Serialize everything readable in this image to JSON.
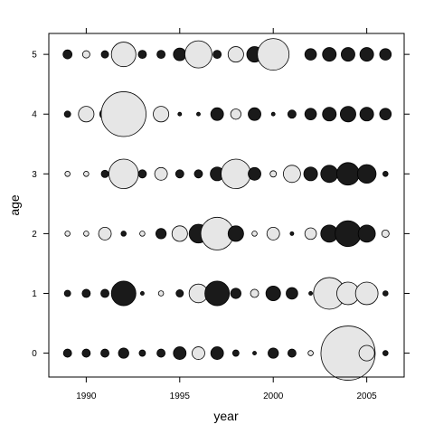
{
  "chart_data": {
    "type": "scatter",
    "subtype": "bubble",
    "title": "",
    "xlabel": "year",
    "ylabel": "age",
    "xlim": [
      1988,
      2007
    ],
    "ylim": [
      -0.4,
      5.35
    ],
    "xticks": [
      1990,
      1995,
      2000,
      2005
    ],
    "yticks": [
      0,
      1,
      2,
      3,
      4,
      5
    ],
    "ticks_on_top_and_right": true,
    "grid": false,
    "legend": "none",
    "colors": {
      "positive": "#1a1a1a",
      "negative": "#e6e6e6",
      "stroke": "#000000"
    },
    "encoding_note": "bubble area proportional to magnitude; dark = positive, light = negative",
    "points": [
      {
        "year": 1989,
        "age": 5,
        "size": 0.06,
        "sign": "positive"
      },
      {
        "year": 1990,
        "age": 5,
        "size": 0.04,
        "sign": "negative"
      },
      {
        "year": 1991,
        "age": 5,
        "size": 0.04,
        "sign": "positive"
      },
      {
        "year": 1992,
        "age": 5,
        "size": 0.45,
        "sign": "negative"
      },
      {
        "year": 1993,
        "age": 5,
        "size": 0.05,
        "sign": "positive"
      },
      {
        "year": 1994,
        "age": 5,
        "size": 0.05,
        "sign": "positive"
      },
      {
        "year": 1995,
        "age": 5,
        "size": 0.12,
        "sign": "positive"
      },
      {
        "year": 1996,
        "age": 5,
        "size": 0.55,
        "sign": "negative"
      },
      {
        "year": 1997,
        "age": 5,
        "size": 0.05,
        "sign": "positive"
      },
      {
        "year": 1998,
        "age": 5,
        "size": 0.18,
        "sign": "negative"
      },
      {
        "year": 1999,
        "age": 5,
        "size": 0.18,
        "sign": "positive"
      },
      {
        "year": 2000,
        "age": 5,
        "size": 0.75,
        "sign": "negative"
      },
      {
        "year": 2002,
        "age": 5,
        "size": 0.1,
        "sign": "positive"
      },
      {
        "year": 2003,
        "age": 5,
        "size": 0.14,
        "sign": "positive"
      },
      {
        "year": 2004,
        "age": 5,
        "size": 0.14,
        "sign": "positive"
      },
      {
        "year": 2005,
        "age": 5,
        "size": 0.14,
        "sign": "positive"
      },
      {
        "year": 2006,
        "age": 5,
        "size": 0.1,
        "sign": "positive"
      },
      {
        "year": 1989,
        "age": 4,
        "size": 0.03,
        "sign": "positive"
      },
      {
        "year": 1990,
        "age": 4,
        "size": 0.18,
        "sign": "negative"
      },
      {
        "year": 1991,
        "age": 4,
        "size": 0.08,
        "sign": "positive"
      },
      {
        "year": 1992,
        "age": 4,
        "size": 1.5,
        "sign": "negative"
      },
      {
        "year": 1994,
        "age": 4,
        "size": 0.18,
        "sign": "negative"
      },
      {
        "year": 1995,
        "age": 4,
        "size": 0.01,
        "sign": "positive"
      },
      {
        "year": 1996,
        "age": 4,
        "size": 0.01,
        "sign": "positive"
      },
      {
        "year": 1997,
        "age": 4,
        "size": 0.12,
        "sign": "positive"
      },
      {
        "year": 1998,
        "age": 4,
        "size": 0.08,
        "sign": "negative"
      },
      {
        "year": 1999,
        "age": 4,
        "size": 0.12,
        "sign": "positive"
      },
      {
        "year": 2000,
        "age": 4,
        "size": 0.01,
        "sign": "positive"
      },
      {
        "year": 2001,
        "age": 4,
        "size": 0.05,
        "sign": "positive"
      },
      {
        "year": 2002,
        "age": 4,
        "size": 0.1,
        "sign": "positive"
      },
      {
        "year": 2003,
        "age": 4,
        "size": 0.14,
        "sign": "positive"
      },
      {
        "year": 2004,
        "age": 4,
        "size": 0.18,
        "sign": "positive"
      },
      {
        "year": 2005,
        "age": 4,
        "size": 0.14,
        "sign": "positive"
      },
      {
        "year": 2006,
        "age": 4,
        "size": 0.1,
        "sign": "positive"
      },
      {
        "year": 1989,
        "age": 3,
        "size": 0.02,
        "sign": "negative"
      },
      {
        "year": 1990,
        "age": 3,
        "size": 0.02,
        "sign": "negative"
      },
      {
        "year": 1991,
        "age": 3,
        "size": 0.04,
        "sign": "positive"
      },
      {
        "year": 1992,
        "age": 3,
        "size": 0.65,
        "sign": "negative"
      },
      {
        "year": 1993,
        "age": 3,
        "size": 0.05,
        "sign": "positive"
      },
      {
        "year": 1994,
        "age": 3,
        "size": 0.12,
        "sign": "negative"
      },
      {
        "year": 1995,
        "age": 3,
        "size": 0.05,
        "sign": "positive"
      },
      {
        "year": 1996,
        "age": 3,
        "size": 0.05,
        "sign": "positive"
      },
      {
        "year": 1997,
        "age": 3,
        "size": 0.14,
        "sign": "positive"
      },
      {
        "year": 1998,
        "age": 3,
        "size": 0.65,
        "sign": "negative"
      },
      {
        "year": 1999,
        "age": 3,
        "size": 0.12,
        "sign": "positive"
      },
      {
        "year": 2000,
        "age": 3,
        "size": 0.03,
        "sign": "negative"
      },
      {
        "year": 2001,
        "age": 3,
        "size": 0.22,
        "sign": "negative"
      },
      {
        "year": 2002,
        "age": 3,
        "size": 0.14,
        "sign": "positive"
      },
      {
        "year": 2003,
        "age": 3,
        "size": 0.22,
        "sign": "positive"
      },
      {
        "year": 2004,
        "age": 3,
        "size": 0.38,
        "sign": "positive"
      },
      {
        "year": 2005,
        "age": 3,
        "size": 0.26,
        "sign": "positive"
      },
      {
        "year": 2006,
        "age": 3,
        "size": 0.02,
        "sign": "positive"
      },
      {
        "year": 1989,
        "age": 2,
        "size": 0.02,
        "sign": "negative"
      },
      {
        "year": 1990,
        "age": 2,
        "size": 0.02,
        "sign": "negative"
      },
      {
        "year": 1991,
        "age": 2,
        "size": 0.12,
        "sign": "negative"
      },
      {
        "year": 1992,
        "age": 2,
        "size": 0.02,
        "sign": "positive"
      },
      {
        "year": 1993,
        "age": 2,
        "size": 0.02,
        "sign": "negative"
      },
      {
        "year": 1994,
        "age": 2,
        "size": 0.08,
        "sign": "positive"
      },
      {
        "year": 1995,
        "age": 2,
        "size": 0.18,
        "sign": "negative"
      },
      {
        "year": 1996,
        "age": 2,
        "size": 0.26,
        "sign": "positive"
      },
      {
        "year": 1997,
        "age": 2,
        "size": 0.8,
        "sign": "negative"
      },
      {
        "year": 1998,
        "age": 2,
        "size": 0.18,
        "sign": "positive"
      },
      {
        "year": 1999,
        "age": 2,
        "size": 0.02,
        "sign": "negative"
      },
      {
        "year": 2000,
        "age": 2,
        "size": 0.12,
        "sign": "negative"
      },
      {
        "year": 2001,
        "age": 2,
        "size": 0.01,
        "sign": "positive"
      },
      {
        "year": 2002,
        "age": 2,
        "size": 0.1,
        "sign": "negative"
      },
      {
        "year": 2003,
        "age": 2,
        "size": 0.22,
        "sign": "positive"
      },
      {
        "year": 2004,
        "age": 2,
        "size": 0.5,
        "sign": "positive"
      },
      {
        "year": 2005,
        "age": 2,
        "size": 0.22,
        "sign": "positive"
      },
      {
        "year": 2006,
        "age": 2,
        "size": 0.04,
        "sign": "negative"
      },
      {
        "year": 1989,
        "age": 1,
        "size": 0.03,
        "sign": "positive"
      },
      {
        "year": 1990,
        "age": 1,
        "size": 0.05,
        "sign": "positive"
      },
      {
        "year": 1991,
        "age": 1,
        "size": 0.05,
        "sign": "positive"
      },
      {
        "year": 1992,
        "age": 1,
        "size": 0.45,
        "sign": "positive"
      },
      {
        "year": 1993,
        "age": 1,
        "size": 0.01,
        "sign": "positive"
      },
      {
        "year": 1994,
        "age": 1,
        "size": 0.02,
        "sign": "negative"
      },
      {
        "year": 1995,
        "age": 1,
        "size": 0.04,
        "sign": "positive"
      },
      {
        "year": 1996,
        "age": 1,
        "size": 0.26,
        "sign": "negative"
      },
      {
        "year": 1997,
        "age": 1,
        "size": 0.45,
        "sign": "positive"
      },
      {
        "year": 1998,
        "age": 1,
        "size": 0.08,
        "sign": "positive"
      },
      {
        "year": 1999,
        "age": 1,
        "size": 0.05,
        "sign": "negative"
      },
      {
        "year": 2000,
        "age": 1,
        "size": 0.16,
        "sign": "positive"
      },
      {
        "year": 2001,
        "age": 1,
        "size": 0.1,
        "sign": "positive"
      },
      {
        "year": 2002,
        "age": 1,
        "size": 0.01,
        "sign": "positive"
      },
      {
        "year": 2003,
        "age": 1,
        "size": 0.75,
        "sign": "negative"
      },
      {
        "year": 2004,
        "age": 1,
        "size": 0.38,
        "sign": "negative"
      },
      {
        "year": 2005,
        "age": 1,
        "size": 0.38,
        "sign": "negative"
      },
      {
        "year": 2006,
        "age": 1,
        "size": 0.02,
        "sign": "positive"
      },
      {
        "year": 1989,
        "age": 0,
        "size": 0.05,
        "sign": "positive"
      },
      {
        "year": 1990,
        "age": 0,
        "size": 0.05,
        "sign": "positive"
      },
      {
        "year": 1991,
        "age": 0,
        "size": 0.05,
        "sign": "positive"
      },
      {
        "year": 1992,
        "age": 0,
        "size": 0.08,
        "sign": "positive"
      },
      {
        "year": 1993,
        "age": 0,
        "size": 0.03,
        "sign": "positive"
      },
      {
        "year": 1994,
        "age": 0,
        "size": 0.05,
        "sign": "positive"
      },
      {
        "year": 1995,
        "age": 0,
        "size": 0.12,
        "sign": "positive"
      },
      {
        "year": 1996,
        "age": 0,
        "size": 0.12,
        "sign": "negative"
      },
      {
        "year": 1997,
        "age": 0,
        "size": 0.12,
        "sign": "positive"
      },
      {
        "year": 1998,
        "age": 0,
        "size": 0.03,
        "sign": "positive"
      },
      {
        "year": 1999,
        "age": 0,
        "size": 0.01,
        "sign": "positive"
      },
      {
        "year": 2000,
        "age": 0,
        "size": 0.08,
        "sign": "positive"
      },
      {
        "year": 2001,
        "age": 0,
        "size": 0.05,
        "sign": "positive"
      },
      {
        "year": 2002,
        "age": 0,
        "size": 0.02,
        "sign": "negative"
      },
      {
        "year": 2003,
        "age": 0,
        "size": 0.01,
        "sign": "positive"
      },
      {
        "year": 2004,
        "age": 0,
        "size": 2.2,
        "sign": "negative"
      },
      {
        "year": 2005,
        "age": 0,
        "size": 0.18,
        "sign": "negative"
      },
      {
        "year": 2006,
        "age": 0,
        "size": 0.02,
        "sign": "positive"
      }
    ]
  }
}
